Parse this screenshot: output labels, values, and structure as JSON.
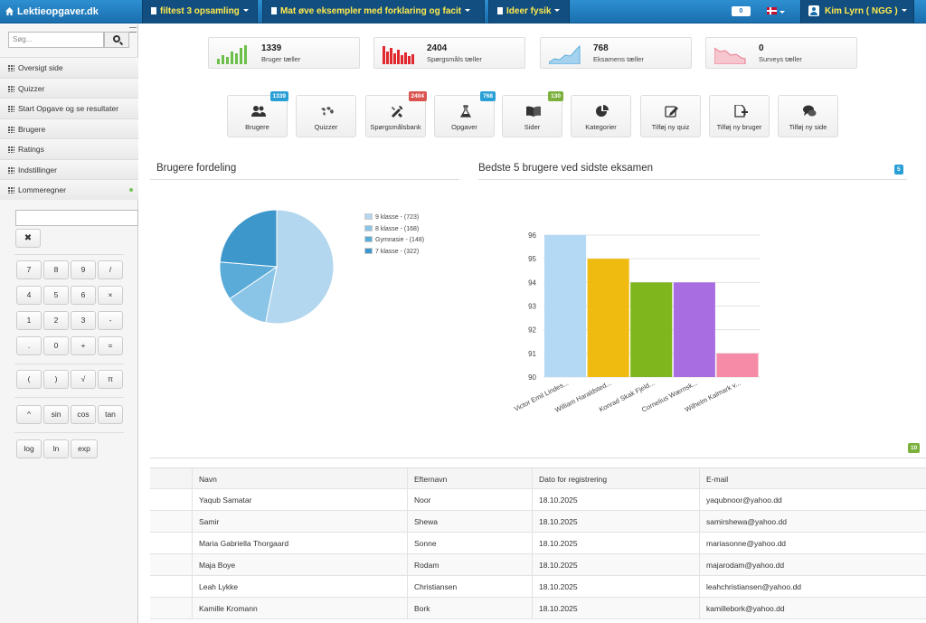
{
  "header": {
    "brand": "Lektieopgaver.dk",
    "nav": [
      {
        "label": "filtest 3 opsamling"
      },
      {
        "label": "Mat øve eksempler med forklaring og facit"
      },
      {
        "label": "Ideer fysik"
      }
    ],
    "counter": "0",
    "user": "Kim Lyrn ( NGG )"
  },
  "sidebar": {
    "search_placeholder": "Søg...",
    "items": [
      {
        "label": "Oversigt side"
      },
      {
        "label": "Quizzer"
      },
      {
        "label": "Start Opgave og se resultater"
      },
      {
        "label": "Brugere"
      },
      {
        "label": "Ratings"
      },
      {
        "label": "Indstillinger"
      },
      {
        "label": "Lommeregner"
      }
    ]
  },
  "calculator": {
    "clear": "✖",
    "rows": [
      [
        "7",
        "8",
        "9",
        "/"
      ],
      [
        "4",
        "5",
        "6",
        "×"
      ],
      [
        "1",
        "2",
        "3",
        "-"
      ],
      [
        ".",
        "0",
        "+",
        "="
      ],
      [
        "(",
        ")",
        "√",
        "π"
      ],
      [
        "^",
        "sin",
        "cos",
        "tan"
      ],
      [
        "log",
        "ln",
        "exp"
      ]
    ]
  },
  "stats": [
    {
      "value": "1339",
      "label": "Bruger tæller"
    },
    {
      "value": "2404",
      "label": "Spørgsmåls tæller"
    },
    {
      "value": "768",
      "label": "Eksamens tæller"
    },
    {
      "value": "0",
      "label": "Surveys tæller"
    }
  ],
  "shortcuts": [
    {
      "label": "Brugere",
      "badge": "1339"
    },
    {
      "label": "Quizzer",
      "badge": ""
    },
    {
      "label": "Spørgsmålsbank",
      "badge": "2404"
    },
    {
      "label": "Opgaver",
      "badge": "768"
    },
    {
      "label": "Sider",
      "badge": "130"
    },
    {
      "label": "Kategorier",
      "badge": ""
    },
    {
      "label": "Tilføj ny quiz",
      "badge": ""
    },
    {
      "label": "Tilføj ny bruger",
      "badge": ""
    },
    {
      "label": "Tilføj ny side",
      "badge": ""
    }
  ],
  "sections": {
    "users_distribution": "Brugere fordeling",
    "top_users": "Bedste 5 brugere ved sidste eksamen",
    "top_users_badge": "5",
    "table_badge": "10"
  },
  "chart_data": [
    {
      "type": "pie",
      "title": "Brugere fordeling",
      "categories": [
        "9 klasse",
        "8 klasse",
        "Gymnasie",
        "7 klasse"
      ],
      "values": [
        723,
        168,
        148,
        322
      ],
      "legend": [
        "9 klasse - (723)",
        "8 klasse - (168)",
        "Gymnasie - (148)",
        "7 klasse - (322)"
      ],
      "colors": [
        "#b3d7ee",
        "#8ac4e6",
        "#5aabd8",
        "#3d97cb"
      ]
    },
    {
      "type": "bar",
      "title": "Bedste 5 brugere ved sidste eksamen",
      "categories": [
        "Victor Emil Lindes...",
        "William Haraldsted...",
        "Konrad Skak Fjeld...",
        "Cornelius Wærnsk...",
        "Wilhelm Kalmark v..."
      ],
      "values": [
        96,
        95,
        94,
        94,
        91
      ],
      "ylim": [
        90,
        96
      ],
      "yticks": [
        "96",
        "95",
        "94",
        "93",
        "92",
        "91",
        "90"
      ],
      "colors": [
        "#b3d9f5",
        "#f0bb11",
        "#7fb51d",
        "#a86de0",
        "#f58ba6"
      ]
    }
  ],
  "table": {
    "columns": [
      "Navn",
      "Efternavn",
      "Dato for registrering",
      "E-mail"
    ],
    "rows": [
      [
        "Yaqub Samatar",
        "Noor",
        "18.10.2025",
        "yaqubnoor@yahoo.dd"
      ],
      [
        "Samir",
        "Shewa",
        "18.10.2025",
        "samirshewa@yahoo.dd"
      ],
      [
        "Maria Gabriella Thorgaard",
        "Sonne",
        "18.10.2025",
        "mariasonne@yahoo.dd"
      ],
      [
        "Maja Boye",
        "Rodam",
        "18.10.2025",
        "majarodam@yahoo.dd"
      ],
      [
        "Leah Lykke",
        "Christiansen",
        "18.10.2025",
        "leahchristiansen@yahoo.dd"
      ],
      [
        "Kamille Kromann",
        "Bork",
        "18.10.2025",
        "kamillebork@yahoo.dd"
      ]
    ]
  }
}
